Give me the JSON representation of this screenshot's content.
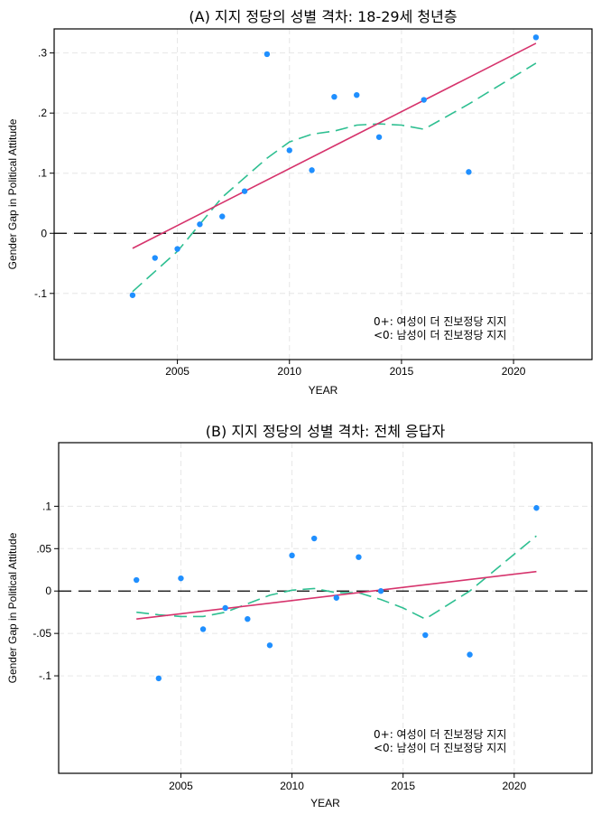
{
  "colors": {
    "points": "#1f8fff",
    "linear_fit": "#d6336c",
    "lowess": "#2ebf91",
    "zero_line": "#000000",
    "grid": "#e6e6e6"
  },
  "chart_data": [
    {
      "type": "scatter",
      "title": "(A) 지지 정당의 성별 격차: 18-29세 청년층",
      "xlabel": "YEAR",
      "ylabel": "Gender Gap in Political Attitude",
      "xlim": [
        1999.5,
        2023.5
      ],
      "ylim": [
        -0.21,
        0.34
      ],
      "xticks": [
        2005,
        2010,
        2015,
        2020
      ],
      "xtick_labels": [
        "2005",
        "2010",
        "2015",
        "2020"
      ],
      "yticks": [
        0.3,
        0.2,
        0.1,
        0,
        -0.1
      ],
      "ytick_labels": [
        ".3",
        ".2",
        ".1",
        "0",
        "-.1"
      ],
      "grid": true,
      "legend_note": [
        "0+: 여성이 더 진보정당 지지",
        "<0: 남성이 더 진보정당 지지"
      ],
      "points": {
        "x": [
          2003,
          2004,
          2005,
          2006,
          2007,
          2008,
          2009,
          2010,
          2011,
          2012,
          2013,
          2014,
          2016,
          2018,
          2021
        ],
        "y": [
          -0.103,
          -0.041,
          -0.026,
          0.015,
          0.028,
          0.07,
          0.298,
          0.138,
          0.105,
          0.227,
          0.23,
          0.16,
          0.222,
          0.102,
          0.326
        ]
      },
      "linear_fit": {
        "x": [
          2003,
          2021
        ],
        "y": [
          -0.025,
          0.316
        ]
      },
      "lowess": {
        "x": [
          2003,
          2005,
          2007,
          2009,
          2010,
          2011,
          2012,
          2013,
          2014,
          2015,
          2016,
          2018,
          2021
        ],
        "y": [
          -0.097,
          -0.03,
          0.06,
          0.125,
          0.152,
          0.165,
          0.17,
          0.18,
          0.182,
          0.18,
          0.173,
          0.215,
          0.283
        ]
      },
      "reference_line_y": 0
    },
    {
      "type": "scatter",
      "title": "(B) 지지 정당의 성별 격차: 전체 응답자",
      "xlabel": "YEAR",
      "ylabel": "Gender Gap in Political Attitude",
      "xlim": [
        1999.5,
        2023.5
      ],
      "ylim": [
        -0.215,
        0.175
      ],
      "xticks": [
        2005,
        2010,
        2015,
        2020
      ],
      "xtick_labels": [
        "2005",
        "2010",
        "2015",
        "2020"
      ],
      "yticks": [
        0.1,
        0.05,
        0,
        -0.05,
        -0.1
      ],
      "ytick_labels": [
        ".1",
        ".05",
        "0",
        "-.05",
        "-.1"
      ],
      "grid": true,
      "legend_note": [
        "0+: 여성이 더 진보정당 지지",
        "<0: 남성이 더 진보정당 지지"
      ],
      "points": {
        "x": [
          2003,
          2004,
          2005,
          2006,
          2007,
          2008,
          2009,
          2010,
          2011,
          2012,
          2013,
          2014,
          2016,
          2018,
          2021
        ],
        "y": [
          0.013,
          -0.103,
          0.015,
          -0.045,
          -0.02,
          -0.033,
          -0.064,
          0.042,
          0.062,
          -0.008,
          0.04,
          0.0,
          -0.052,
          -0.075,
          0.098
        ]
      },
      "linear_fit": {
        "x": [
          2003,
          2021
        ],
        "y": [
          -0.033,
          0.023
        ]
      },
      "lowess": {
        "x": [
          2003,
          2004,
          2005,
          2006,
          2007,
          2008,
          2009,
          2010,
          2011,
          2012,
          2013,
          2014,
          2015,
          2016,
          2018,
          2021
        ],
        "y": [
          -0.025,
          -0.028,
          -0.03,
          -0.03,
          -0.025,
          -0.015,
          -0.005,
          0.001,
          0.003,
          -0.002,
          -0.002,
          -0.01,
          -0.02,
          -0.033,
          0.0,
          0.065
        ]
      },
      "reference_line_y": 0
    }
  ]
}
